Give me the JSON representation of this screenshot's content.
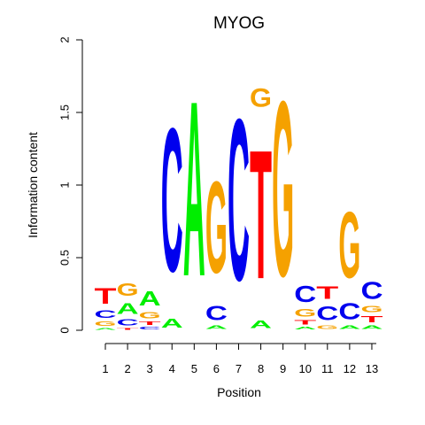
{
  "chart_data": {
    "type": "sequence-logo",
    "title": "MYOG",
    "xlabel": "Position",
    "ylabel": "Information content",
    "ylim": [
      0,
      2
    ],
    "y_ticks": [
      "0",
      "0.5",
      "1",
      "1.5",
      "2"
    ],
    "y_tick_values": [
      0,
      0.5,
      1,
      1.5,
      2
    ],
    "positions": [
      "1",
      "2",
      "3",
      "4",
      "5",
      "6",
      "7",
      "8",
      "9",
      "10",
      "11",
      "12",
      "13"
    ],
    "colors": {
      "A": "#00ee00",
      "C": "#0000ee",
      "G": "#f5a100",
      "T": "#ff0000"
    },
    "stacks": [
      [
        {
          "base": "A",
          "height": 0.02
        },
        {
          "base": "G",
          "height": 0.05
        },
        {
          "base": "C",
          "height": 0.08
        },
        {
          "base": "T",
          "height": 0.17
        }
      ],
      [
        {
          "base": "T",
          "height": 0.02
        },
        {
          "base": "C",
          "height": 0.07
        },
        {
          "base": "A",
          "height": 0.12
        },
        {
          "base": "G",
          "height": 0.14
        }
      ],
      [
        {
          "base": "C",
          "height": 0.03
        },
        {
          "base": "T",
          "height": 0.04
        },
        {
          "base": "G",
          "height": 0.07
        },
        {
          "base": "A",
          "height": 0.16
        }
      ],
      [
        {
          "base": "A",
          "height": 0.1
        },
        {
          "base": "C",
          "height": 1.58
        }
      ],
      [
        {
          "base": "A",
          "height": 1.93
        }
      ],
      [
        {
          "base": "A",
          "height": 0.04
        },
        {
          "base": "C",
          "height": 0.16
        },
        {
          "base": "G",
          "height": 1.01
        }
      ],
      [
        {
          "base": "C",
          "height": 1.78
        }
      ],
      [
        {
          "base": "A",
          "height": 0.08
        },
        {
          "base": "T",
          "height": 1.42
        },
        {
          "base": "G",
          "height": 0.2
        }
      ],
      [
        {
          "base": "G",
          "height": 1.93
        }
      ],
      [
        {
          "base": "A",
          "height": 0.03
        },
        {
          "base": "T",
          "height": 0.05
        },
        {
          "base": "G",
          "height": 0.08
        },
        {
          "base": "C",
          "height": 0.18
        }
      ],
      [
        {
          "base": "G",
          "height": 0.04
        },
        {
          "base": "C",
          "height": 0.15
        },
        {
          "base": "T",
          "height": 0.14
        }
      ],
      [
        {
          "base": "A",
          "height": 0.04
        },
        {
          "base": "C",
          "height": 0.18
        },
        {
          "base": "G",
          "height": 0.73
        }
      ],
      [
        {
          "base": "A",
          "height": 0.04
        },
        {
          "base": "T",
          "height": 0.07
        },
        {
          "base": "G",
          "height": 0.07
        },
        {
          "base": "C",
          "height": 0.19
        }
      ]
    ]
  }
}
